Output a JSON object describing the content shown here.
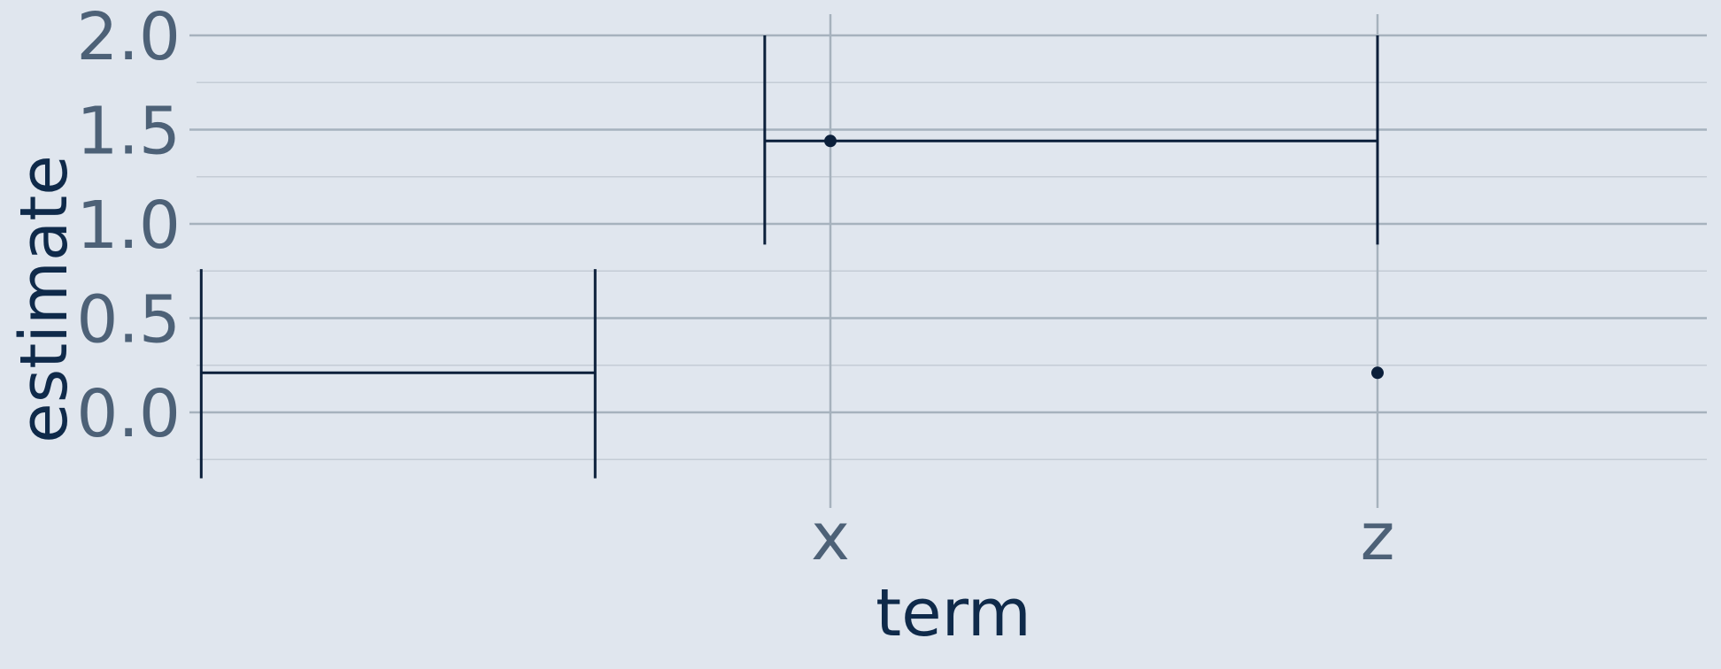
{
  "chart_data": {
    "type": "scatter",
    "title": "",
    "xlabel": "term",
    "ylabel": "estimate",
    "x_scale": "continuous",
    "xlim": [
      -0.8,
      1.2
    ],
    "ylim": [
      -0.35,
      2.0
    ],
    "x_ticks": [
      {
        "value": 0,
        "label": "x"
      },
      {
        "value": 1,
        "label": "z"
      }
    ],
    "y_ticks": [
      0.0,
      0.5,
      1.0,
      1.5,
      2.0
    ],
    "y_tick_labels": [
      "0.0",
      "0.5",
      "1.0",
      "1.5",
      "2.0"
    ],
    "grid": true,
    "points": [
      {
        "term": "x",
        "x": 0,
        "y": 1.44
      },
      {
        "term": "z",
        "x": 1,
        "y": 0.21
      }
    ],
    "error_bars": [
      {
        "orientation": "vertical",
        "x": -0.12,
        "y_low": 0.89,
        "y_high": 2.0
      },
      {
        "orientation": "vertical",
        "x": 1,
        "y_low": 0.89,
        "y_high": 2.0
      },
      {
        "orientation": "horizontal",
        "y": 1.44,
        "x_low": -0.12,
        "x_high": 1
      },
      {
        "orientation": "vertical",
        "x": -1.15,
        "y_low": -0.35,
        "y_high": 0.76
      },
      {
        "orientation": "vertical",
        "x": -0.43,
        "y_low": -0.35,
        "y_high": 0.76
      },
      {
        "orientation": "horizontal",
        "y": 0.21,
        "x_low": -1.15,
        "x_high": -0.43
      }
    ],
    "colors": {
      "background": "#e0e6ee",
      "mark": "#0b1f3a",
      "grid": "#a6b2bd",
      "tick": "#4d6177",
      "title": "#0f2a4a"
    }
  }
}
